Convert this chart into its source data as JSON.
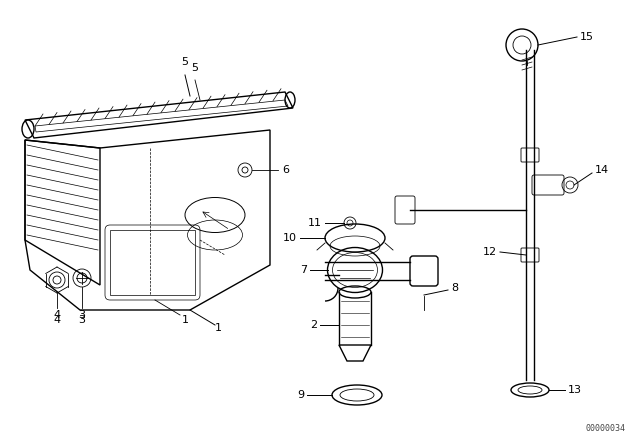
{
  "background_color": "#ffffff",
  "line_color": "#000000",
  "text_color": "#000000",
  "watermark": "00000034",
  "figsize": [
    6.4,
    4.48
  ],
  "dpi": 100
}
